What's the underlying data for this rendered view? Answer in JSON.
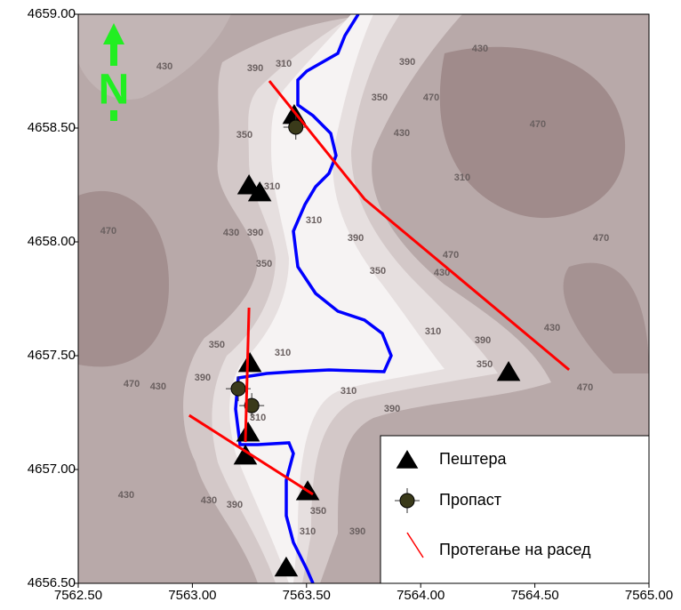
{
  "chart_data": {
    "type": "map",
    "north_label": "N",
    "xlim": [
      7562.5,
      7565.0
    ],
    "ylim": [
      4656.5,
      4659.0
    ],
    "xticks": [
      {
        "value": 7562.5,
        "label": "7562.50"
      },
      {
        "value": 7563.0,
        "label": "7563.00"
      },
      {
        "value": 7563.5,
        "label": "7563.50"
      },
      {
        "value": 7564.0,
        "label": "7564.00"
      },
      {
        "value": 7564.5,
        "label": "7564.50"
      },
      {
        "value": 7565.0,
        "label": "7565.00"
      }
    ],
    "yticks": [
      {
        "value": 4656.5,
        "label": "4656.50"
      },
      {
        "value": 4657.0,
        "label": "4657.00"
      },
      {
        "value": 4657.5,
        "label": "4657.50"
      },
      {
        "value": 4658.0,
        "label": "4658.00"
      },
      {
        "value": 4658.5,
        "label": "4658.50"
      },
      {
        "value": 4659.0,
        "label": "4659.00"
      }
    ],
    "series": [
      {
        "name": "Пештера",
        "marker": "triangle",
        "color": "#000000",
        "x": [
          7563.446,
          7563.248,
          7563.295,
          7563.252,
          7563.244,
          7563.232,
          7563.505,
          7563.411,
          7564.385
        ],
        "values": [
          4658.551,
          4658.242,
          4658.211,
          4657.461,
          4657.156,
          4657.055,
          4656.898,
          4656.563,
          4657.422
        ]
      },
      {
        "name": "Пропаст",
        "marker": "sinkhole",
        "color": "#3a3a1a",
        "x": [
          7563.453,
          7563.26,
          7563.201
        ],
        "values": [
          4658.504,
          4657.281,
          4657.355
        ]
      },
      {
        "name": "Протегање на расед",
        "marker": "line",
        "color": "#ff0000",
        "lines": [
          {
            "x": [
              7563.337,
              7563.754,
              7564.65
            ],
            "values": [
              4658.707,
              4658.188,
              4657.438
            ]
          },
          {
            "x": [
              7563.248,
              7563.232
            ],
            "values": [
              4657.711,
              4657.121
            ]
          },
          {
            "x": [
              7562.986,
              7563.528
            ],
            "values": [
              4657.238,
              4656.891
            ]
          }
        ]
      }
    ],
    "contour_labels": [
      {
        "text": "430",
        "x": 7562.878,
        "y": 4658.77
      },
      {
        "text": "390",
        "x": 7563.275,
        "y": 4658.762
      },
      {
        "text": "310",
        "x": 7563.4,
        "y": 4658.781
      },
      {
        "text": "430",
        "x": 7564.26,
        "y": 4658.848
      },
      {
        "text": "390",
        "x": 7563.941,
        "y": 4658.789
      },
      {
        "text": "350",
        "x": 7563.82,
        "y": 4658.633
      },
      {
        "text": "470",
        "x": 7564.046,
        "y": 4658.633
      },
      {
        "text": "430",
        "x": 7563.917,
        "y": 4658.477
      },
      {
        "text": "470",
        "x": 7564.513,
        "y": 4658.516
      },
      {
        "text": "310",
        "x": 7564.182,
        "y": 4658.281
      },
      {
        "text": "350",
        "x": 7563.228,
        "y": 4658.469
      },
      {
        "text": "310",
        "x": 7563.349,
        "y": 4658.242
      },
      {
        "text": "310",
        "x": 7563.532,
        "y": 4658.094
      },
      {
        "text": "430",
        "x": 7563.17,
        "y": 4658.039
      },
      {
        "text": "390",
        "x": 7563.275,
        "y": 4658.039
      },
      {
        "text": "470",
        "x": 7562.632,
        "y": 4658.047
      },
      {
        "text": "390",
        "x": 7563.715,
        "y": 4658.016
      },
      {
        "text": "470",
        "x": 7564.132,
        "y": 4657.941
      },
      {
        "text": "430",
        "x": 7564.093,
        "y": 4657.863
      },
      {
        "text": "350",
        "x": 7563.812,
        "y": 4657.871
      },
      {
        "text": "470",
        "x": 7564.79,
        "y": 4658.016
      },
      {
        "text": "350",
        "x": 7563.314,
        "y": 4657.902
      },
      {
        "text": "310",
        "x": 7564.054,
        "y": 4657.605
      },
      {
        "text": "430",
        "x": 7564.576,
        "y": 4657.621
      },
      {
        "text": "390",
        "x": 7564.272,
        "y": 4657.566
      },
      {
        "text": "350",
        "x": 7564.28,
        "y": 4657.461
      },
      {
        "text": "470",
        "x": 7564.72,
        "y": 4657.359
      },
      {
        "text": "350",
        "x": 7563.107,
        "y": 4657.547
      },
      {
        "text": "310",
        "x": 7563.396,
        "y": 4657.512
      },
      {
        "text": "390",
        "x": 7563.045,
        "y": 4657.402
      },
      {
        "text": "430",
        "x": 7562.85,
        "y": 4657.363
      },
      {
        "text": "470",
        "x": 7562.734,
        "y": 4657.375
      },
      {
        "text": "310",
        "x": 7563.684,
        "y": 4657.344
      },
      {
        "text": "390",
        "x": 7563.875,
        "y": 4657.266
      },
      {
        "text": "310",
        "x": 7563.287,
        "y": 4657.227
      },
      {
        "text": "430",
        "x": 7562.71,
        "y": 4656.887
      },
      {
        "text": "430",
        "x": 7563.072,
        "y": 4656.863
      },
      {
        "text": "390",
        "x": 7563.185,
        "y": 4656.844
      },
      {
        "text": "350",
        "x": 7563.551,
        "y": 4656.816
      },
      {
        "text": "310",
        "x": 7563.505,
        "y": 4656.727
      },
      {
        "text": "390",
        "x": 7563.723,
        "y": 4656.727
      }
    ]
  }
}
